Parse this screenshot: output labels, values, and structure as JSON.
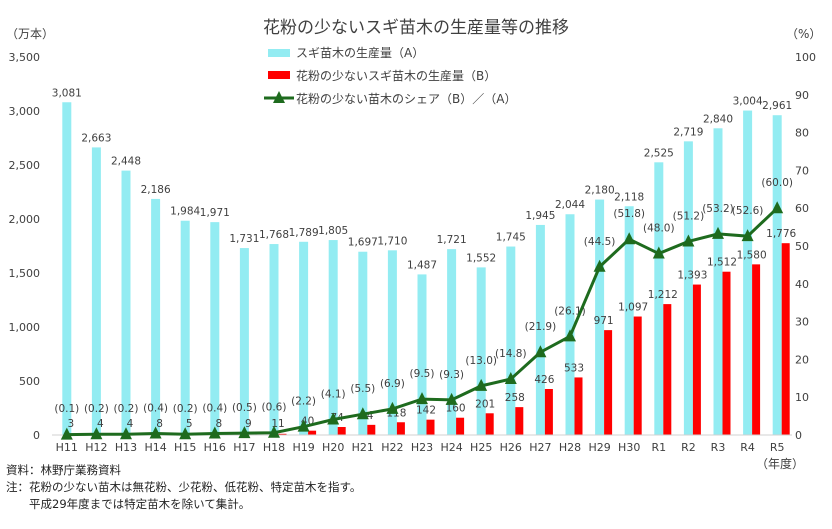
{
  "chart_data": {
    "type": "bar+line",
    "title": "花粉の少ないスギ苗木の生産量等の推移",
    "ylabel_left": "（万本）",
    "ylabel_right": "（%）",
    "xlabel": "（年度）",
    "ylim_left": [
      0,
      3500
    ],
    "yticks_left": [
      "0",
      "500",
      "1,000",
      "1,500",
      "2,000",
      "2,500",
      "3,000",
      "3,500"
    ],
    "ylim_right": [
      0,
      100
    ],
    "yticks_right": [
      "0",
      "10",
      "20",
      "30",
      "40",
      "50",
      "60",
      "70",
      "80",
      "90",
      "100"
    ],
    "grid": false,
    "legend_position": "top-center",
    "categories": [
      "H11",
      "H12",
      "H13",
      "H14",
      "H15",
      "H16",
      "H17",
      "H18",
      "H19",
      "H20",
      "H21",
      "H22",
      "H23",
      "H24",
      "H25",
      "H26",
      "H27",
      "H28",
      "H29",
      "H30",
      "R1",
      "R2",
      "R3",
      "R4",
      "R5"
    ],
    "series": [
      {
        "name": "スギ苗木の生産量（A）",
        "type": "bar",
        "color": "#93ECF2",
        "values": [
          3081,
          2663,
          2448,
          2186,
          1984,
          1971,
          1731,
          1768,
          1789,
          1805,
          1697,
          1710,
          1487,
          1721,
          1552,
          1745,
          1945,
          2044,
          2180,
          2118,
          2525,
          2719,
          2840,
          3004,
          2961
        ]
      },
      {
        "name": "花粉の少ないスギ苗木の生産量（B）",
        "type": "bar",
        "color": "#FF0000",
        "values": [
          3,
          4,
          4,
          8,
          5,
          8,
          9,
          11,
          40,
          74,
          94,
          118,
          142,
          160,
          201,
          258,
          426,
          533,
          971,
          1097,
          1212,
          1393,
          1512,
          1580,
          1776
        ]
      },
      {
        "name": "花粉の少ない苗木のシェア（B）／（A）",
        "type": "line",
        "axis": "right",
        "color": "#1E6B1E",
        "values": [
          0.1,
          0.2,
          0.2,
          0.4,
          0.2,
          0.4,
          0.5,
          0.6,
          2.2,
          4.1,
          5.5,
          6.9,
          9.5,
          9.3,
          13.0,
          14.8,
          21.9,
          26.1,
          44.5,
          51.8,
          48.0,
          51.2,
          53.2,
          52.6,
          60.0
        ]
      }
    ]
  },
  "notes": [
    "資料：林野庁業務資料",
    "注：花粉の少ない苗木は無花粉、少花粉、低花粉、特定苗木を指す。",
    "　　平成29年度までは特定苗木を除いて集計。"
  ]
}
